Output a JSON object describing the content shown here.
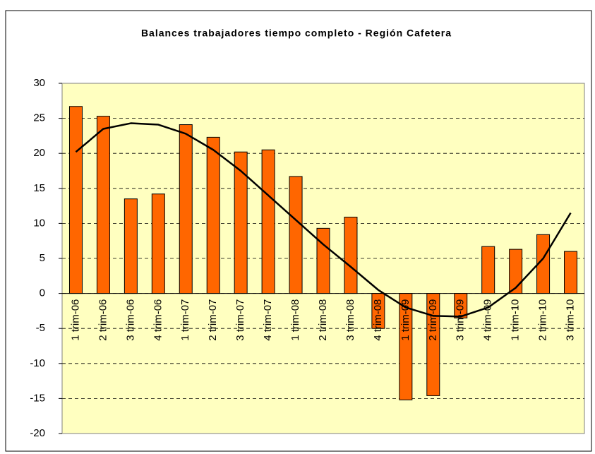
{
  "chart_data": {
    "type": "bar",
    "title": "Balances trabajadores tiempo completo - Región Cafetera",
    "categories": [
      "1 trim-06",
      "2 trim-06",
      "3 trim-06",
      "4 trim-06",
      "1 trim-07",
      "2 trim-07",
      "3 trim-07",
      "4 trim-07",
      "1 trim-08",
      "2 trim-08",
      "3 trim-08",
      "4 trim-08",
      "1 trim-09",
      "2 trim-09",
      "3 trim-09",
      "4 trim-09",
      "1 trim-10",
      "2 trim-10",
      "3 trim-10"
    ],
    "series": [
      {
        "type": "bar",
        "color": "#ff6600",
        "values": [
          26.7,
          25.3,
          13.5,
          14.2,
          24.1,
          22.3,
          20.2,
          20.5,
          16.7,
          9.3,
          10.9,
          -5,
          -15.2,
          -14.6,
          -3.5,
          6.7,
          6.3,
          8.4,
          6.0
        ]
      },
      {
        "type": "line",
        "color": "#000000",
        "values": [
          20.2,
          23.5,
          24.3,
          24.1,
          22.8,
          20.5,
          17.5,
          14,
          10.5,
          7,
          3.8,
          0.5,
          -2,
          -3.2,
          -3.3,
          -2,
          0.8,
          5,
          11.5
        ]
      }
    ],
    "ylim": [
      -20,
      30
    ],
    "yticks": [
      -20,
      -15,
      -10,
      -5,
      0,
      5,
      10,
      15,
      20,
      25,
      30
    ],
    "grid": true
  }
}
